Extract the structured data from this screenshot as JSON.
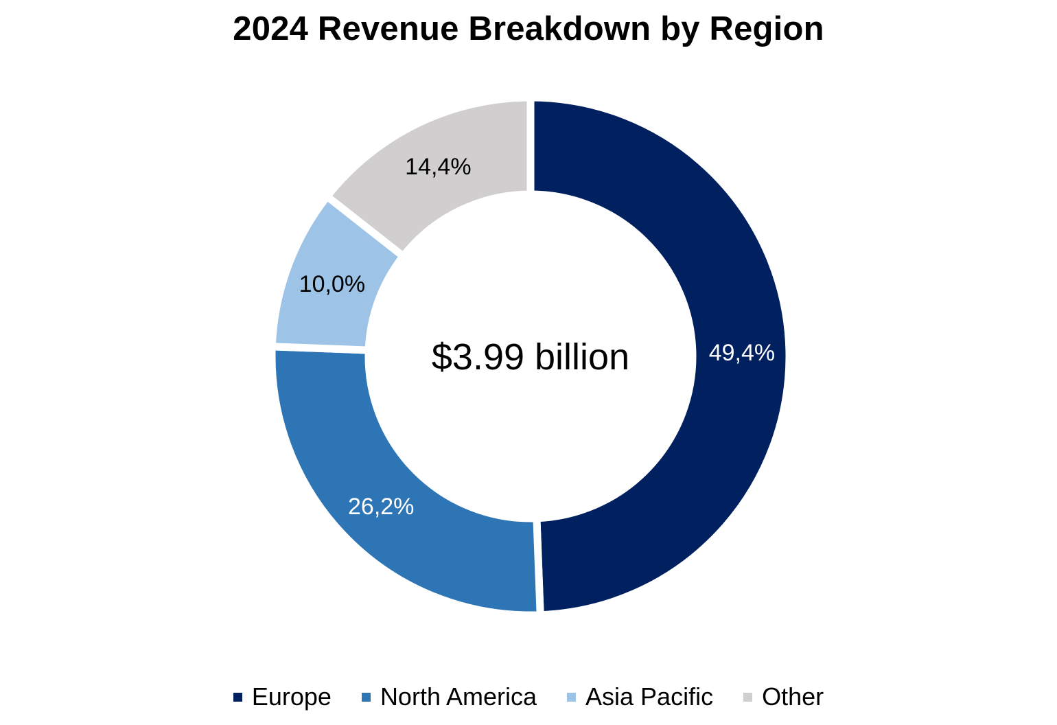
{
  "chart_data": {
    "type": "pie",
    "variant": "donut",
    "title": "2024 Revenue Breakdown by Region",
    "center_label": "$3.99 billion",
    "categories": [
      "Europe",
      "North America",
      "Asia Pacific",
      "Other"
    ],
    "values": [
      49.4,
      26.2,
      10.0,
      14.4
    ],
    "value_labels": [
      "49,4%",
      "26,2%",
      "10,0%",
      "14,4%"
    ],
    "unit": "%",
    "colors": [
      "#002060",
      "#2E75B6",
      "#9DC3E6",
      "#D0CECE"
    ],
    "label_colors": [
      "#ffffff",
      "#ffffff",
      "#000000",
      "#000000"
    ],
    "legend_position": "bottom"
  }
}
